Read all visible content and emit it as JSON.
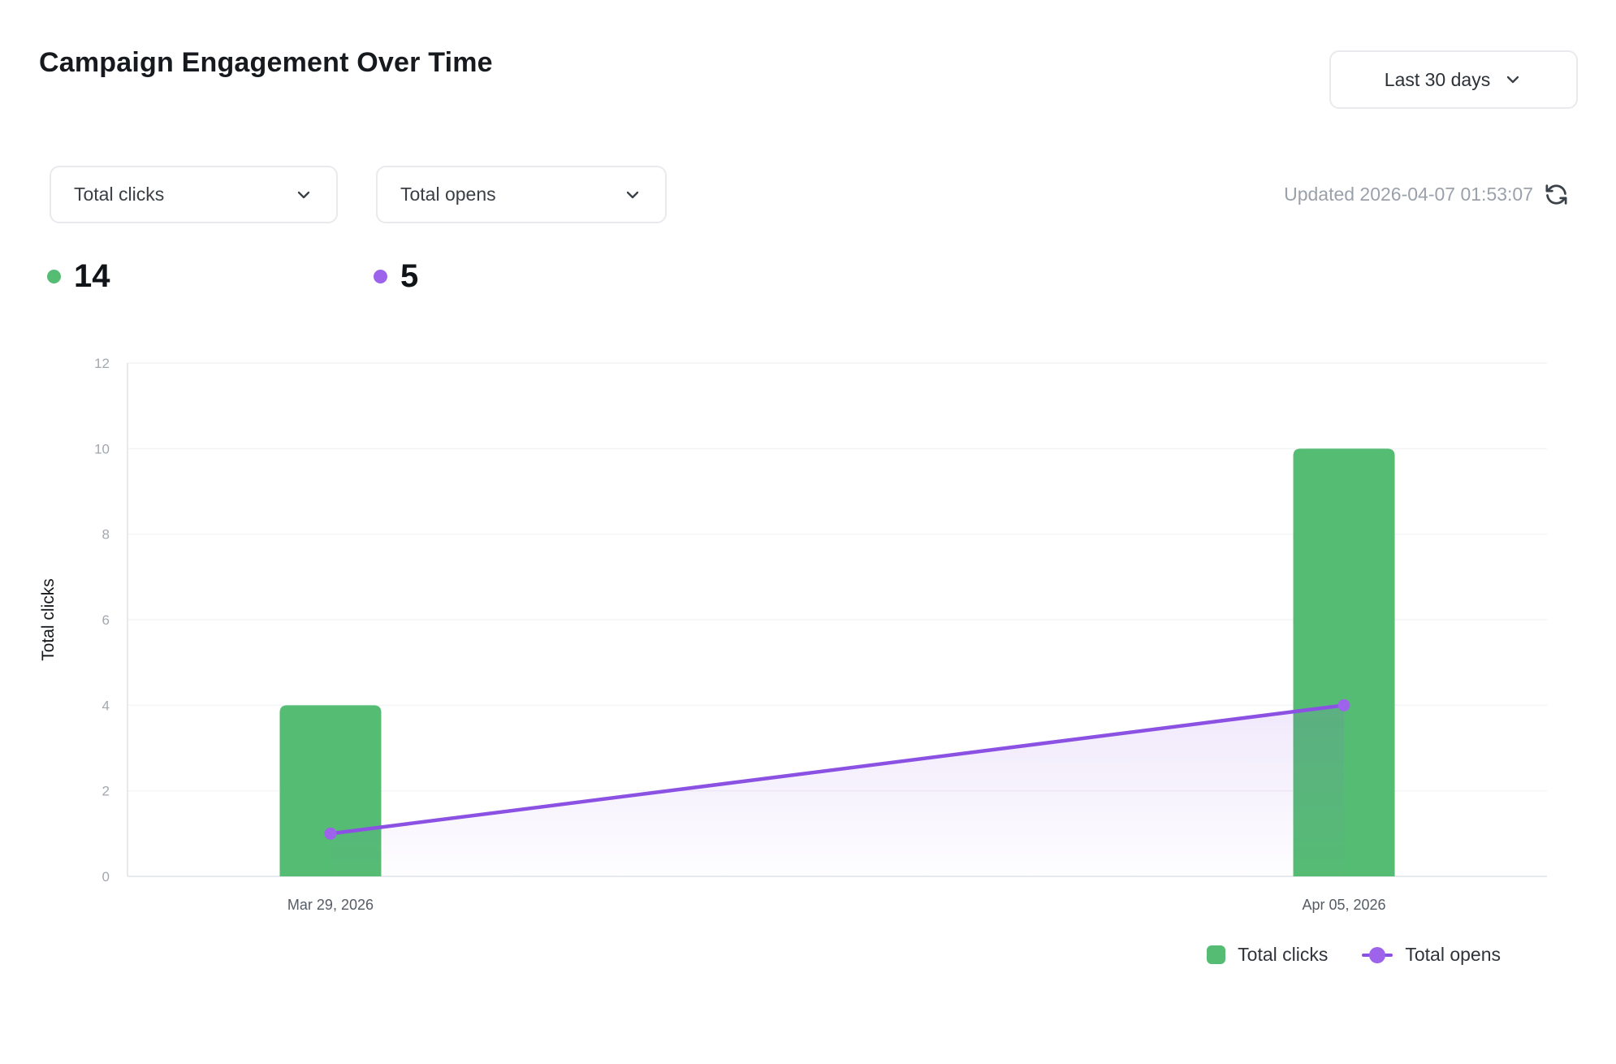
{
  "header": {
    "title": "Campaign Engagement Over Time",
    "range_selector": {
      "label": "Last 30 days"
    }
  },
  "controls": {
    "metric_selects": [
      {
        "value": "Total clicks"
      },
      {
        "value": "Total opens"
      }
    ],
    "updated_text": "Updated 2026-04-07 01:53:07"
  },
  "summary": {
    "metrics": [
      {
        "value": "14",
        "color": "#55bd73"
      },
      {
        "value": "5",
        "color": "#9d63ea"
      }
    ]
  },
  "chart_data": {
    "type": "bar",
    "categories": [
      "Mar 29, 2026",
      "Apr 05, 2026"
    ],
    "series": [
      {
        "name": "Total clicks",
        "type": "bar",
        "color": "#55bd73",
        "values": [
          4,
          10
        ]
      },
      {
        "name": "Total opens",
        "type": "line",
        "color": "#8b51e3",
        "dot_color": "#9d63ea",
        "values": [
          1,
          4
        ]
      }
    ],
    "title": "",
    "xlabel": "",
    "ylabel": "Total clicks",
    "ylim": [
      0,
      12
    ],
    "yticks": [
      0,
      2,
      4,
      6,
      8,
      10,
      12
    ],
    "grid": true,
    "legend_position": "bottom-right",
    "colors": {
      "grid_line": "#f2f4f6",
      "axis_line": "#dfe3e7",
      "tick_label": "#a2a8b0",
      "x_label": "#565c64",
      "axis_title": "#15181c"
    }
  }
}
